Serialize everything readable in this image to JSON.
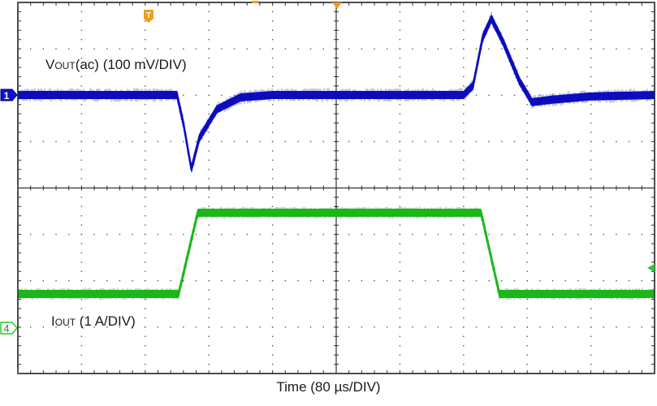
{
  "chart_data": {
    "type": "line",
    "title": "",
    "xlabel": "Time (80 µs/DIV)",
    "ylabel": "",
    "grid": true,
    "divisions": {
      "horizontal": 10,
      "vertical": 8
    },
    "time_per_div_us": 80,
    "x_range_us": [
      0,
      800
    ],
    "trigger_position_us": 400,
    "series": [
      {
        "name": "VOUT(ac)",
        "channel": 1,
        "scale": "100 mV/DIV",
        "color": "#1010d0",
        "baseline_mV": 0,
        "points_us_mV": [
          [
            0,
            0
          ],
          [
            200,
            0
          ],
          [
            208,
            -60
          ],
          [
            218,
            -155
          ],
          [
            228,
            -90
          ],
          [
            250,
            -30
          ],
          [
            280,
            -5
          ],
          [
            320,
            0
          ],
          [
            560,
            0
          ],
          [
            572,
            20
          ],
          [
            584,
            120
          ],
          [
            595,
            160
          ],
          [
            610,
            110
          ],
          [
            630,
            30
          ],
          [
            646,
            -15
          ],
          [
            670,
            -10
          ],
          [
            720,
            -3
          ],
          [
            800,
            0
          ]
        ]
      },
      {
        "name": "IOUT",
        "channel": 4,
        "scale": "1 A/DIV",
        "color": "#22cc22",
        "low_level_div": 0.45,
        "high_level_div": 2.2,
        "step_A": 1.75,
        "points_us_div": [
          [
            0,
            0
          ],
          [
            202,
            0
          ],
          [
            226,
            1.75
          ],
          [
            560,
            1.75
          ],
          [
            582,
            1.75
          ],
          [
            605,
            0
          ],
          [
            800,
            0
          ]
        ]
      }
    ],
    "annotations": [
      "VOUT(ac) (100 mV/DIV)",
      "IOUT (1 A/DIV)"
    ]
  },
  "labels": {
    "vout_main": "V",
    "vout_sub": "OUT",
    "vout_rest": "(ac) (100 mV/DIV)",
    "iout_main": "I",
    "iout_sub": "OUT",
    "iout_rest": " (1 A/DIV)",
    "time": "Time (80 µs/DIV)",
    "ch1_marker": "1",
    "ch4_marker": "4",
    "trigger_marker": "T"
  },
  "colors": {
    "ch1": "#1010d0",
    "ch4": "#22cc22",
    "trigger": "#f39c1e",
    "frame": "#222222",
    "grid_dots": "#555555"
  }
}
